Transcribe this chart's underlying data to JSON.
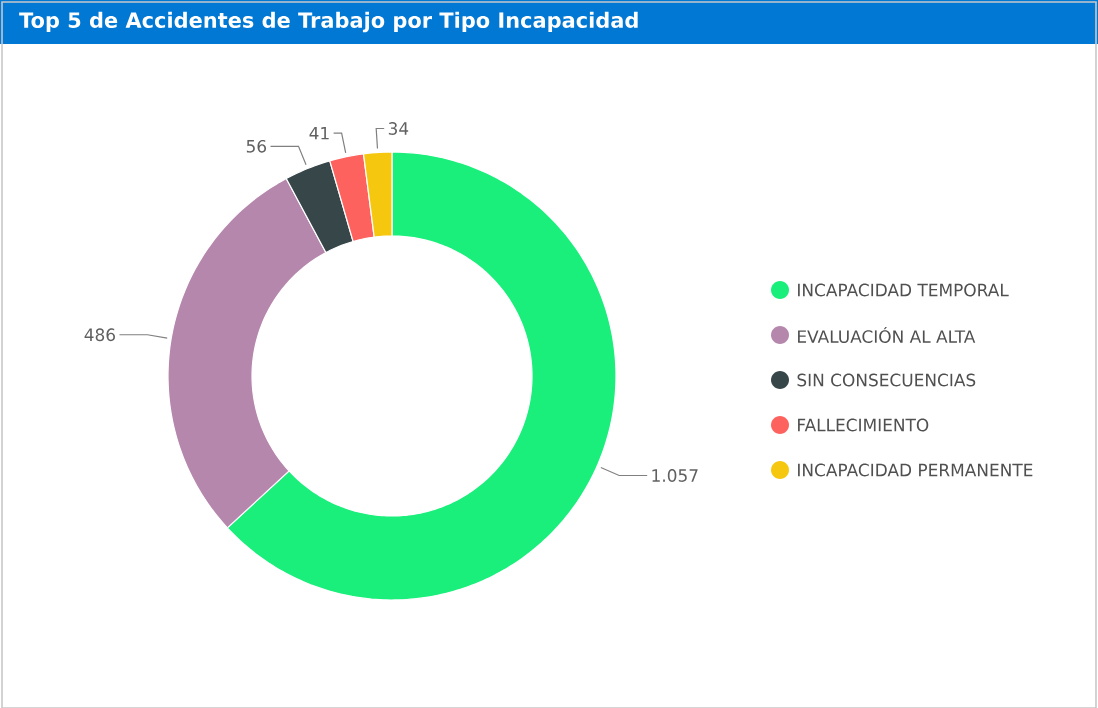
{
  "chart_data": {
    "type": "donut",
    "title": "Top 5 de Accidentes de Trabajo por Tipo Incapacidad",
    "categories": [
      "INCAPACIDAD TEMPORAL",
      "EVALUACIÓN AL ALTA",
      "SIN CONSECUENCIAS",
      "FALLECIMIENTO",
      "INCAPACIDAD PERMANENTE"
    ],
    "values": [
      1057,
      486,
      56,
      41,
      34
    ],
    "value_labels": [
      "1.057",
      "486",
      "56",
      "41",
      "34"
    ],
    "colors": [
      "#1aef7b",
      "#b587ad",
      "#374649",
      "#fd625e",
      "#f5c80f"
    ],
    "legend": "right"
  }
}
